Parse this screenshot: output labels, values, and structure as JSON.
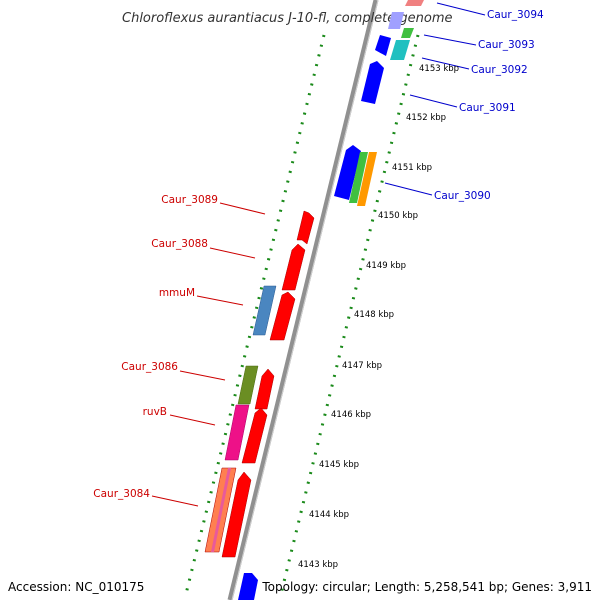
{
  "title": "Chloroflexus aurantiacus J-10-fl, complete genome",
  "accession_text": "Accession: NC_010175",
  "summary_text": "Topology: circular; Length: 5,258,541 bp; Genes: 3,911",
  "colors": {
    "backbone": "#909090",
    "tick": "#1a8a1a",
    "reverse_label": "#cc0000",
    "forward_label": "#0000cc",
    "reverse_gene": "#ff0000",
    "forward_gene": "#0000ff"
  },
  "scale_labels": [
    "4143 kbp",
    "4144 kbp",
    "4145 kbp",
    "4146 kbp",
    "4147 kbp",
    "4148 kbp",
    "4149 kbp",
    "4150 kbp",
    "4151 kbp",
    "4152 kbp",
    "4153 kbp"
  ],
  "reverse_gene_labels": [
    "Caur_3089",
    "Caur_3088",
    "mmuM",
    "Caur_3086",
    "ruvB",
    "Caur_3084"
  ],
  "forward_gene_labels": [
    "Caur_3094",
    "Caur_3093",
    "Caur_3092",
    "Caur_3091",
    "Caur_3090"
  ]
}
